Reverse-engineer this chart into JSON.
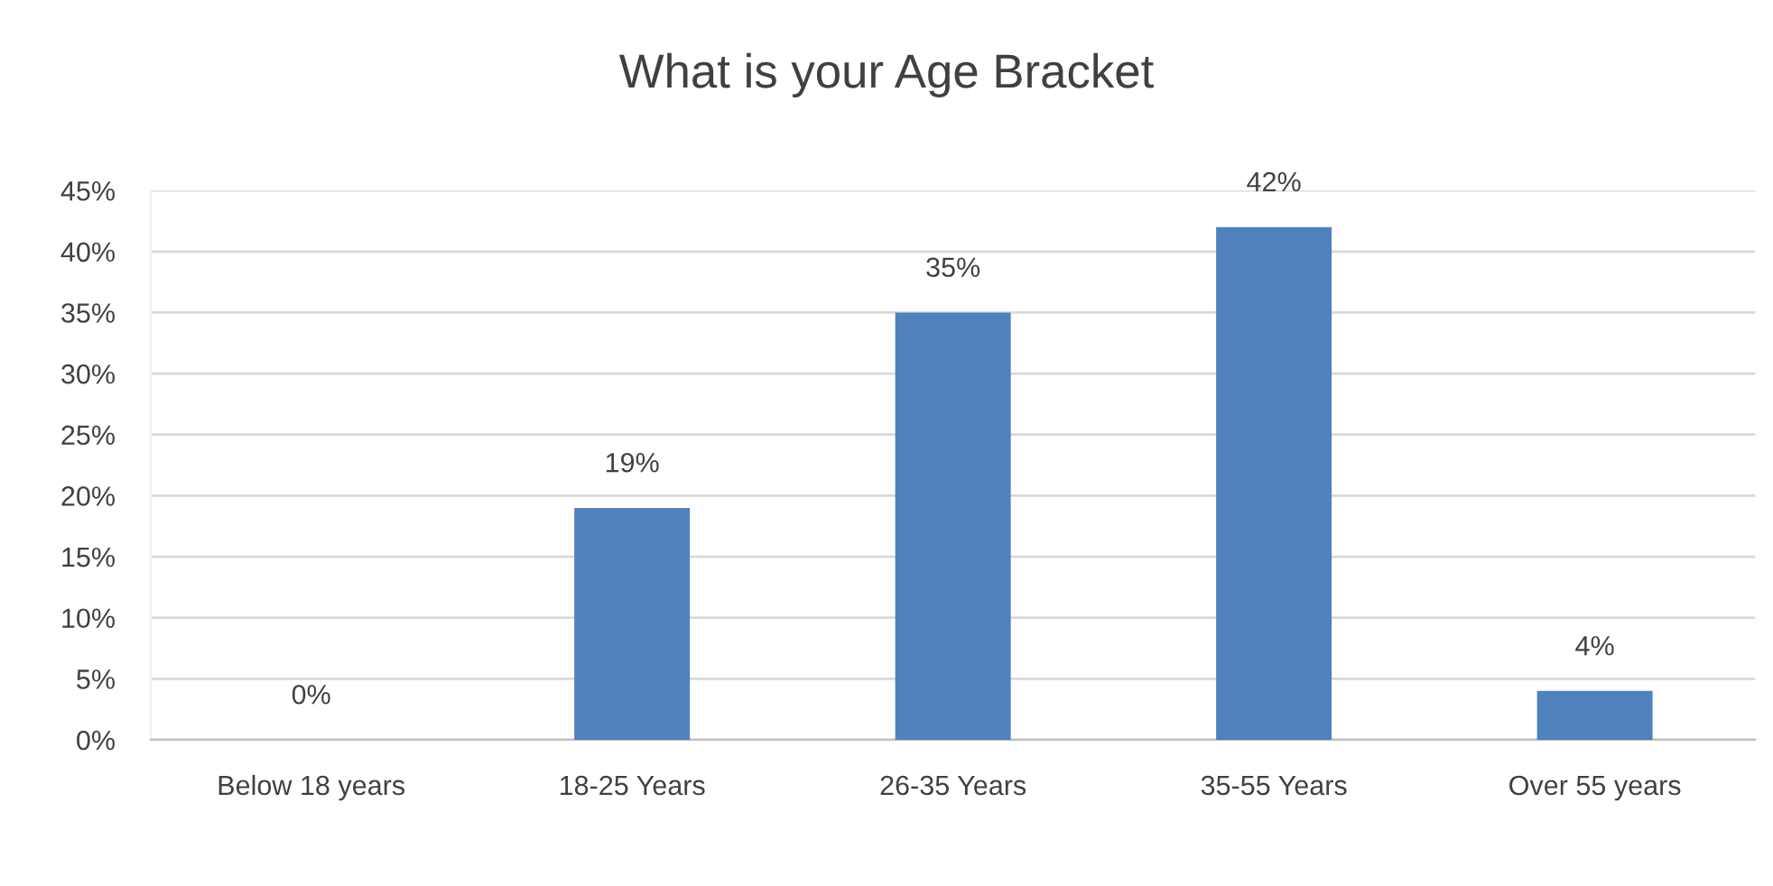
{
  "chart_data": {
    "type": "bar",
    "title": "What is your Age Bracket",
    "categories": [
      "Below 18 years",
      "18-25 Years",
      "26-35 Years",
      "35-55 Years",
      "Over 55 years"
    ],
    "values": [
      0,
      19,
      35,
      42,
      4
    ],
    "value_labels": [
      "0%",
      "19%",
      "35%",
      "42%",
      "4%"
    ],
    "color": "#4f81bd",
    "ylim": [
      0,
      45
    ],
    "yticks": [
      {
        "value": 0,
        "label": "0%"
      },
      {
        "value": 5,
        "label": "5%"
      },
      {
        "value": 10,
        "label": "10%"
      },
      {
        "value": 15,
        "label": "15%"
      },
      {
        "value": 20,
        "label": "20%"
      },
      {
        "value": 25,
        "label": "25%"
      },
      {
        "value": 30,
        "label": "30%"
      },
      {
        "value": 35,
        "label": "35%"
      },
      {
        "value": 40,
        "label": "40%"
      },
      {
        "value": 45,
        "label": "45%"
      }
    ],
    "grid": "y",
    "legend": false
  }
}
